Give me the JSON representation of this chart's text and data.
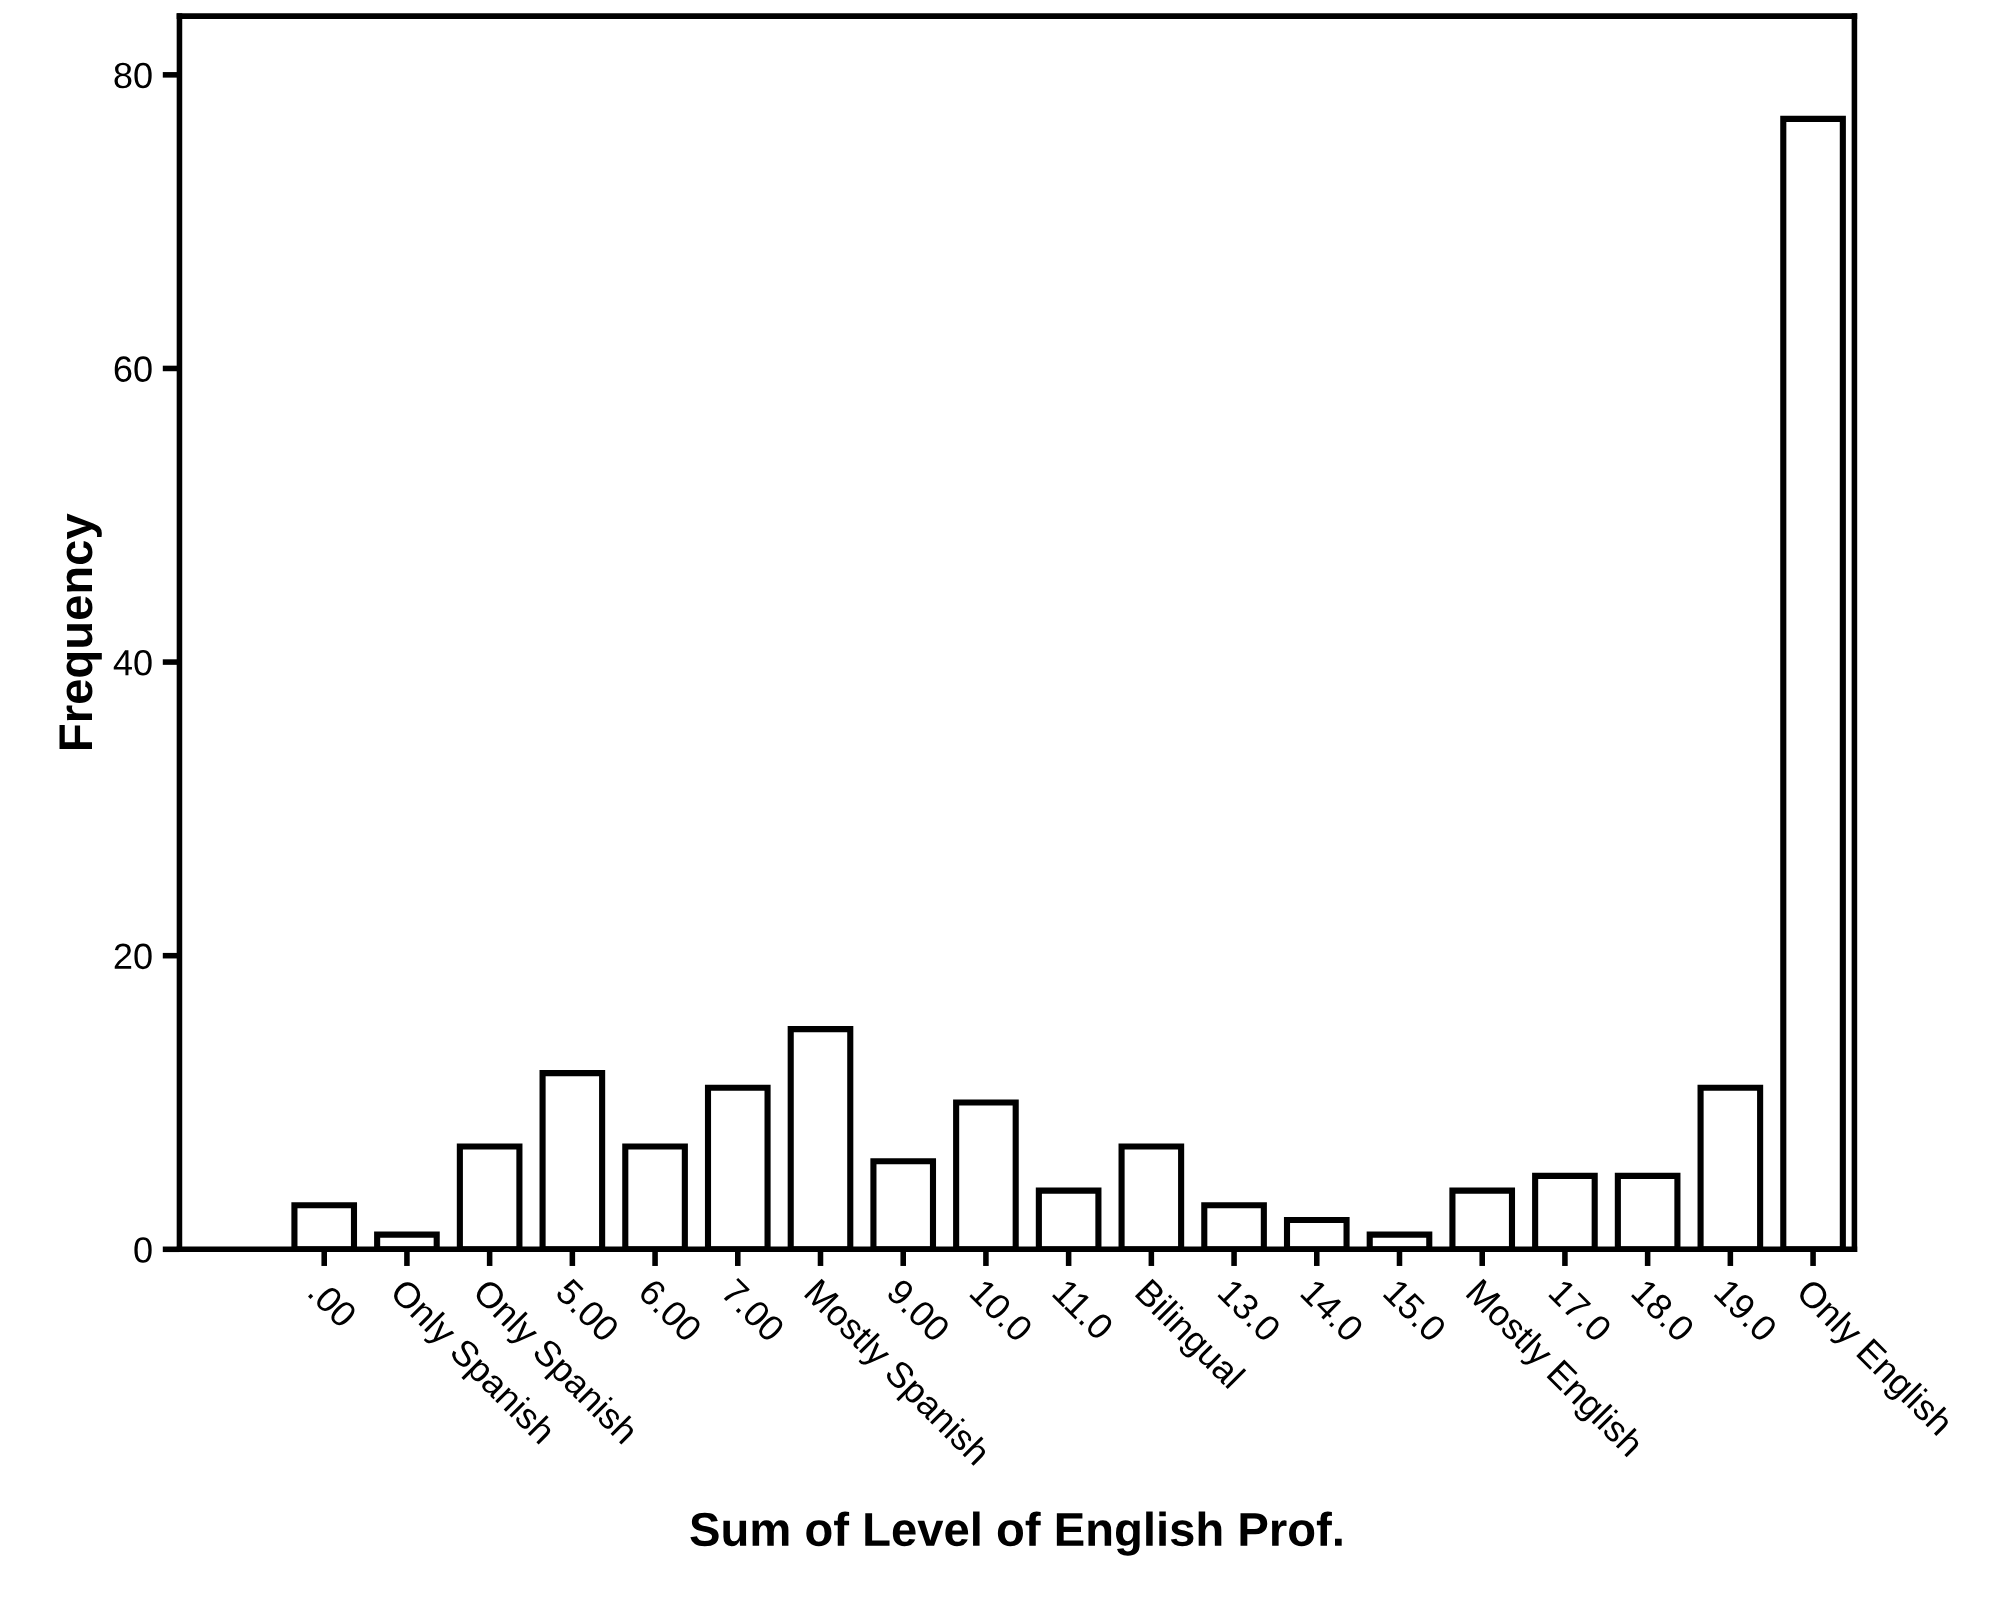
{
  "chart_data": {
    "type": "bar",
    "xlabel": "Sum of Level of English Prof.",
    "ylabel": "Frequency",
    "categories": [
      ".00",
      "Only Spanish",
      "Only Spanish",
      "5.00",
      "6.00",
      "7.00",
      "Mostly Spanish",
      "9.00",
      "10.0",
      "11.0",
      "Bilingual",
      "13.0",
      "14.0",
      "15.0",
      "Mostly English",
      "17.0",
      "18.0",
      "19.0",
      "Only English"
    ],
    "values": [
      3,
      1,
      7,
      12,
      7,
      11,
      15,
      6,
      10,
      4,
      7,
      3,
      2,
      1,
      4,
      5,
      5,
      11,
      77
    ],
    "color": "#ffffff",
    "ylim": [
      0,
      84
    ],
    "yticks": [
      0,
      20,
      40,
      60,
      80
    ],
    "grid": false
  }
}
